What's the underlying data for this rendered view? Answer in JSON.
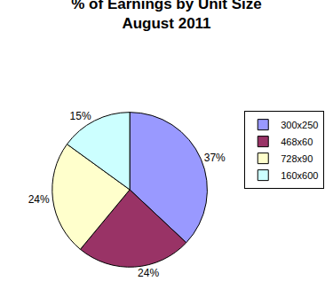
{
  "chart_data": {
    "type": "pie",
    "title": "% of Earnings by Unit Size\nAugust 2011",
    "categories": [
      "300x250",
      "468x60",
      "728x90",
      "160x600"
    ],
    "values": [
      37,
      24,
      24,
      15
    ],
    "value_labels": [
      "37%",
      "24%",
      "24%",
      "15%"
    ],
    "colors": [
      "#9999ff",
      "#993366",
      "#ffffcc",
      "#ccffff"
    ],
    "data_labels": true,
    "legend": "right"
  }
}
